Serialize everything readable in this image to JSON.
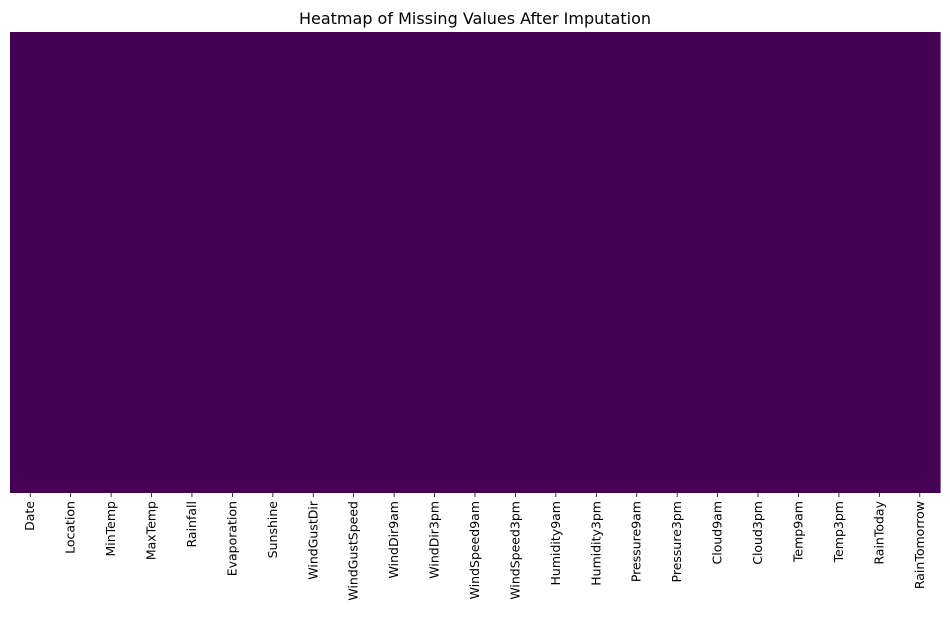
{
  "chart_data": {
    "type": "heatmap",
    "title": "Heatmap of Missing Values After Imputation",
    "xlabel": "",
    "ylabel": "",
    "columns": [
      "Date",
      "Location",
      "MinTemp",
      "MaxTemp",
      "Rainfall",
      "Evaporation",
      "Sunshine",
      "WindGustDir",
      "WindGustSpeed",
      "WindDir9am",
      "WindDir3pm",
      "WindSpeed9am",
      "WindSpeed3pm",
      "Humidity9am",
      "Humidity3pm",
      "Pressure9am",
      "Pressure3pm",
      "Cloud9am",
      "Cloud3pm",
      "Temp9am",
      "Temp3pm",
      "RainToday",
      "RainTomorrow"
    ],
    "missing_counts": [
      0,
      0,
      0,
      0,
      0,
      0,
      0,
      0,
      0,
      0,
      0,
      0,
      0,
      0,
      0,
      0,
      0,
      0,
      0,
      0,
      0,
      0,
      0
    ],
    "colormap": "viridis",
    "cell_color": "#440154",
    "colorbar": false,
    "y_ticks_visible": false
  }
}
